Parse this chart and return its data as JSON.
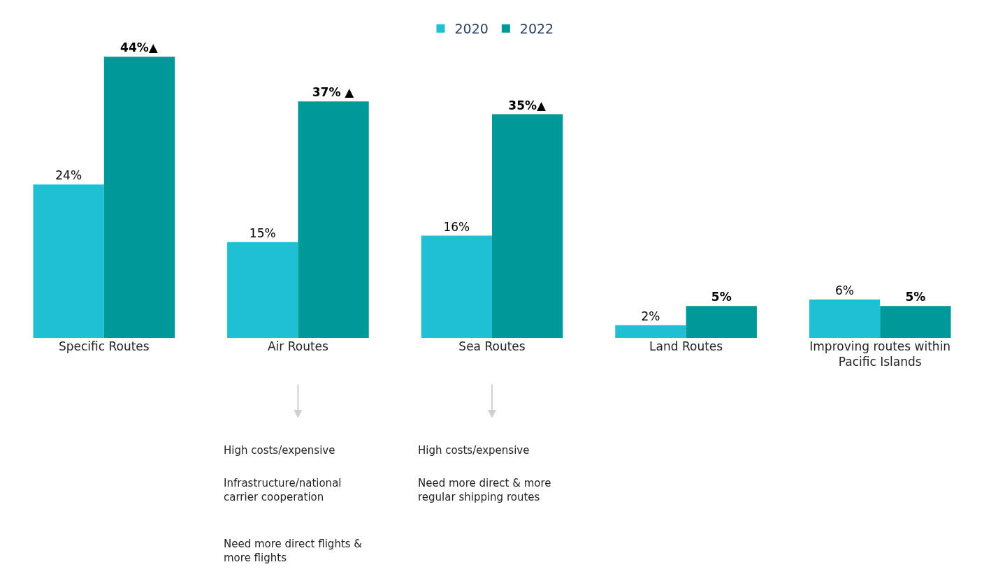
{
  "chart_data": {
    "type": "bar",
    "categories": [
      "Specific Routes",
      "Air Routes",
      "Sea Routes",
      "Land Routes",
      "Improving routes within Pacific Islands"
    ],
    "series": [
      {
        "name": "2020",
        "color": "#1fbfd4",
        "values": [
          24,
          15,
          16,
          2,
          6
        ],
        "value_labels": [
          "24%",
          "15%",
          "16%",
          "2%",
          "6%"
        ]
      },
      {
        "name": "2022",
        "color": "#009999",
        "values": [
          44,
          37,
          35,
          5,
          5
        ],
        "value_labels": [
          "44%▲",
          "37% ▲",
          "35%▲",
          "5%",
          "5%"
        ]
      }
    ],
    "tick_labels": "x",
    "legend": "top",
    "annotations": [
      "High costs/expensive",
      "Infrastructure/national carrier cooperation",
      "Need more direct flights & more flights",
      "High costs/expensive",
      "Need more direct & more regular shipping routes"
    ]
  }
}
